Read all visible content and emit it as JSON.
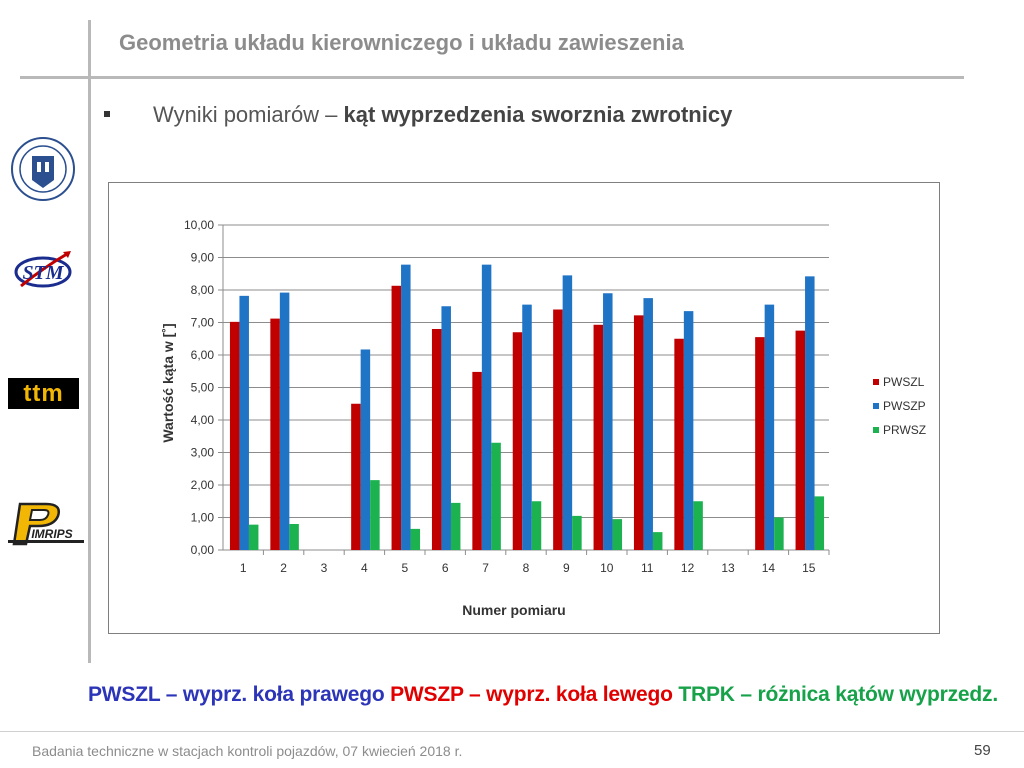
{
  "slide": {
    "title": "Geometria układu kierowniczego i układu zawieszenia",
    "bullet_prefix": "Wyniki pomiarów – ",
    "bullet_bold": "kąt wyprzedzenia sworznia zwrotnicy"
  },
  "logos": {
    "ttm_text": "ttm",
    "stm_text": "STM",
    "imrips_text": "IMRIPS"
  },
  "caption": {
    "part1": "PWSZL – wyprz. koła prawego ",
    "part2": "PWSZP – wyprz. koła lewego ",
    "part3": "TRPK – różnica kątów wyprzedz."
  },
  "footer": {
    "text": "Badania techniczne w stacjach kontroli pojazdów, 07 kwiecień 2018 r.",
    "page": "59"
  },
  "chart_data": {
    "type": "bar",
    "xlabel": "Numer pomiaru",
    "ylabel": "Wartość kąta w [˚]",
    "ylim": [
      0,
      10
    ],
    "yticks": [
      "0,00",
      "1,00",
      "2,00",
      "3,00",
      "4,00",
      "5,00",
      "6,00",
      "7,00",
      "8,00",
      "9,00",
      "10,00"
    ],
    "categories": [
      "1",
      "2",
      "3",
      "4",
      "5",
      "6",
      "7",
      "8",
      "9",
      "10",
      "11",
      "12",
      "13",
      "14",
      "15"
    ],
    "grid": true,
    "legend_position": "right",
    "series": [
      {
        "name": "PWSZL",
        "color": "#c00000",
        "values": [
          7.02,
          7.12,
          null,
          4.5,
          8.13,
          6.8,
          5.48,
          6.7,
          7.4,
          6.93,
          7.22,
          6.5,
          null,
          6.55,
          6.75
        ]
      },
      {
        "name": "PWSZP",
        "color": "#1f74c6",
        "values": [
          7.82,
          7.92,
          null,
          6.17,
          8.78,
          7.5,
          8.78,
          7.55,
          8.45,
          7.9,
          7.75,
          7.35,
          null,
          7.55,
          8.42
        ]
      },
      {
        "name": "PRWSZ",
        "color": "#1cb250",
        "values": [
          0.78,
          0.8,
          null,
          2.15,
          0.65,
          1.45,
          3.3,
          1.5,
          1.05,
          0.95,
          0.55,
          1.5,
          null,
          1.0,
          1.65
        ]
      }
    ]
  }
}
